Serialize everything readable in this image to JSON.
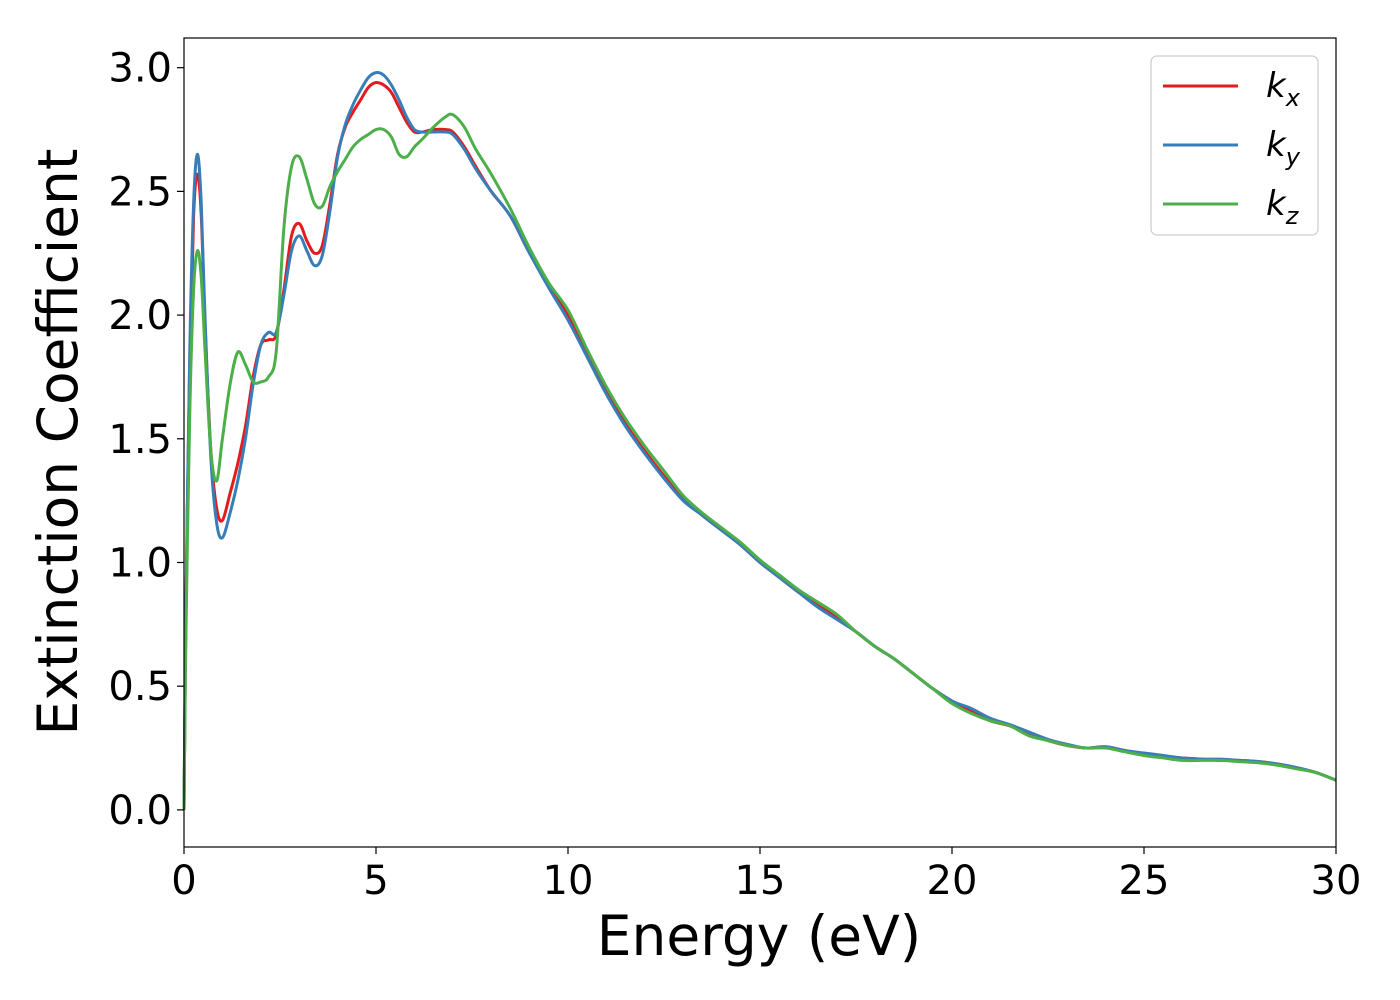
{
  "chart_data": {
    "type": "line",
    "xlabel": "Energy (eV)",
    "ylabel": "Extinction Coefficient",
    "xlim": [
      0,
      30
    ],
    "ylim": [
      -0.15,
      3.12
    ],
    "xticks": [
      "0",
      "5",
      "10",
      "15",
      "20",
      "25",
      "30"
    ],
    "yticks": [
      "0.0",
      "0.5",
      "1.0",
      "1.5",
      "2.0",
      "2.5",
      "3.0"
    ],
    "legend_position": "top-right",
    "grid": false,
    "series": [
      {
        "name": "k_x",
        "label_main": "k",
        "label_sub": "x",
        "color": "#e41a1c",
        "x": [
          0,
          0.05,
          0.15,
          0.25,
          0.35,
          0.45,
          0.55,
          0.7,
          0.85,
          1.0,
          1.2,
          1.4,
          1.6,
          1.8,
          2.0,
          2.2,
          2.4,
          2.6,
          2.8,
          3.0,
          3.2,
          3.4,
          3.6,
          3.8,
          4.0,
          4.2,
          4.4,
          4.6,
          4.8,
          5.0,
          5.2,
          5.4,
          5.6,
          5.8,
          6.0,
          6.2,
          6.5,
          6.8,
          7.0,
          7.3,
          7.6,
          8.0,
          8.5,
          9.0,
          9.5,
          10.0,
          10.5,
          11.0,
          11.5,
          12.0,
          12.5,
          13.0,
          13.5,
          14.0,
          14.5,
          15.0,
          15.5,
          16.0,
          16.5,
          17.0,
          17.5,
          18.0,
          18.5,
          19.0,
          19.5,
          20.0,
          20.5,
          21.0,
          21.5,
          22.0,
          22.5,
          23.0,
          23.5,
          24.0,
          24.5,
          25.0,
          25.5,
          26.0,
          26.5,
          27.0,
          27.5,
          28.0,
          28.5,
          29.0,
          29.5,
          30.0
        ],
        "values": [
          0.0,
          0.8,
          1.8,
          2.4,
          2.57,
          2.4,
          1.95,
          1.45,
          1.22,
          1.17,
          1.28,
          1.4,
          1.55,
          1.75,
          1.88,
          1.9,
          1.92,
          2.1,
          2.32,
          2.37,
          2.3,
          2.25,
          2.28,
          2.45,
          2.65,
          2.76,
          2.82,
          2.87,
          2.92,
          2.94,
          2.93,
          2.9,
          2.84,
          2.78,
          2.74,
          2.74,
          2.75,
          2.75,
          2.74,
          2.68,
          2.6,
          2.5,
          2.4,
          2.25,
          2.12,
          2.0,
          1.84,
          1.69,
          1.56,
          1.45,
          1.35,
          1.26,
          1.19,
          1.13,
          1.07,
          1.0,
          0.94,
          0.88,
          0.83,
          0.78,
          0.72,
          0.66,
          0.61,
          0.55,
          0.49,
          0.44,
          0.4,
          0.36,
          0.34,
          0.31,
          0.28,
          0.26,
          0.25,
          0.255,
          0.24,
          0.225,
          0.215,
          0.21,
          0.205,
          0.2,
          0.2,
          0.195,
          0.185,
          0.17,
          0.15,
          0.12
        ]
      },
      {
        "name": "k_y",
        "label_main": "k",
        "label_sub": "y",
        "color": "#377eb8",
        "x": [
          0,
          0.05,
          0.15,
          0.25,
          0.35,
          0.45,
          0.55,
          0.7,
          0.85,
          1.0,
          1.2,
          1.4,
          1.6,
          1.8,
          2.0,
          2.2,
          2.4,
          2.6,
          2.8,
          3.0,
          3.2,
          3.4,
          3.6,
          3.8,
          4.0,
          4.2,
          4.4,
          4.6,
          4.8,
          5.0,
          5.2,
          5.4,
          5.6,
          5.8,
          6.0,
          6.2,
          6.5,
          6.8,
          7.0,
          7.3,
          7.6,
          8.0,
          8.5,
          9.0,
          9.5,
          10.0,
          10.5,
          11.0,
          11.5,
          12.0,
          12.5,
          13.0,
          13.5,
          14.0,
          14.5,
          15.0,
          15.5,
          16.0,
          16.5,
          17.0,
          17.5,
          18.0,
          18.5,
          19.0,
          19.5,
          20.0,
          20.5,
          21.0,
          21.5,
          22.0,
          22.5,
          23.0,
          23.5,
          24.0,
          24.5,
          25.0,
          25.5,
          26.0,
          26.5,
          27.0,
          27.5,
          28.0,
          28.5,
          29.0,
          29.5,
          30.0
        ],
        "values": [
          0.0,
          0.8,
          1.85,
          2.45,
          2.65,
          2.45,
          1.98,
          1.42,
          1.16,
          1.1,
          1.2,
          1.33,
          1.5,
          1.72,
          1.88,
          1.93,
          1.93,
          2.08,
          2.26,
          2.32,
          2.26,
          2.2,
          2.24,
          2.42,
          2.64,
          2.77,
          2.85,
          2.91,
          2.96,
          2.98,
          2.97,
          2.93,
          2.87,
          2.8,
          2.75,
          2.74,
          2.74,
          2.74,
          2.73,
          2.67,
          2.59,
          2.5,
          2.4,
          2.25,
          2.11,
          1.98,
          1.83,
          1.68,
          1.55,
          1.44,
          1.34,
          1.25,
          1.19,
          1.13,
          1.07,
          1.0,
          0.94,
          0.88,
          0.82,
          0.77,
          0.72,
          0.66,
          0.61,
          0.55,
          0.49,
          0.44,
          0.41,
          0.37,
          0.345,
          0.315,
          0.285,
          0.265,
          0.25,
          0.255,
          0.24,
          0.23,
          0.22,
          0.21,
          0.205,
          0.205,
          0.2,
          0.195,
          0.185,
          0.17,
          0.15,
          0.12
        ]
      },
      {
        "name": "k_z",
        "label_main": "k",
        "label_sub": "z",
        "color": "#4daf4a",
        "x": [
          0,
          0.05,
          0.15,
          0.25,
          0.35,
          0.45,
          0.55,
          0.7,
          0.85,
          1.0,
          1.2,
          1.4,
          1.6,
          1.8,
          2.0,
          2.2,
          2.4,
          2.6,
          2.8,
          3.0,
          3.2,
          3.4,
          3.6,
          3.8,
          4.0,
          4.2,
          4.4,
          4.6,
          4.8,
          5.0,
          5.2,
          5.4,
          5.6,
          5.8,
          6.0,
          6.2,
          6.5,
          6.8,
          7.0,
          7.3,
          7.6,
          8.0,
          8.5,
          9.0,
          9.5,
          10.0,
          10.5,
          11.0,
          11.5,
          12.0,
          12.5,
          13.0,
          13.5,
          14.0,
          14.5,
          15.0,
          15.5,
          16.0,
          16.5,
          17.0,
          17.5,
          18.0,
          18.5,
          19.0,
          19.5,
          20.0,
          20.5,
          21.0,
          21.5,
          22.0,
          22.5,
          23.0,
          23.5,
          24.0,
          24.5,
          25.0,
          25.5,
          26.0,
          26.5,
          27.0,
          27.5,
          28.0,
          28.5,
          29.0,
          29.5,
          30.0
        ],
        "values": [
          0.0,
          0.7,
          1.6,
          2.1,
          2.26,
          2.15,
          1.85,
          1.45,
          1.33,
          1.5,
          1.72,
          1.85,
          1.8,
          1.73,
          1.73,
          1.75,
          1.85,
          2.35,
          2.6,
          2.64,
          2.55,
          2.45,
          2.44,
          2.52,
          2.58,
          2.63,
          2.68,
          2.71,
          2.73,
          2.75,
          2.75,
          2.72,
          2.65,
          2.64,
          2.68,
          2.71,
          2.76,
          2.8,
          2.81,
          2.76,
          2.67,
          2.57,
          2.43,
          2.27,
          2.13,
          2.02,
          1.86,
          1.71,
          1.58,
          1.47,
          1.37,
          1.27,
          1.2,
          1.14,
          1.08,
          1.01,
          0.95,
          0.89,
          0.84,
          0.79,
          0.72,
          0.66,
          0.61,
          0.55,
          0.49,
          0.43,
          0.39,
          0.36,
          0.34,
          0.3,
          0.28,
          0.26,
          0.25,
          0.25,
          0.235,
          0.22,
          0.21,
          0.2,
          0.2,
          0.2,
          0.195,
          0.19,
          0.18,
          0.165,
          0.15,
          0.12
        ]
      }
    ]
  }
}
